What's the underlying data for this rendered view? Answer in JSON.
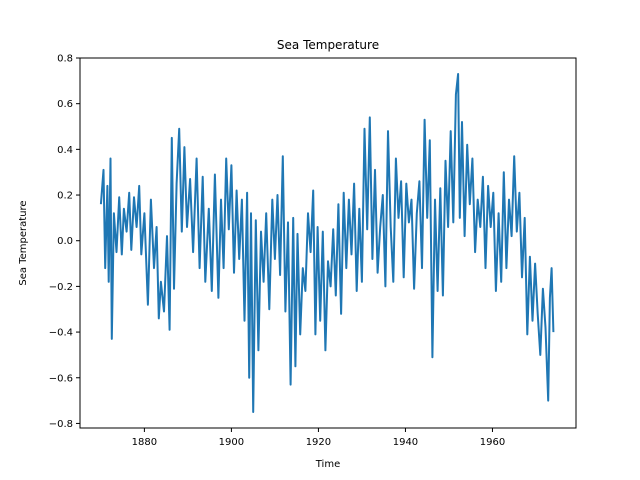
{
  "chart_data": {
    "type": "line",
    "title": "Sea Temperature",
    "xlabel": "Time",
    "ylabel": "Sea Temperature",
    "xlim": [
      1865.2,
      1979.2
    ],
    "ylim": [
      -0.82,
      0.8
    ],
    "x_ticks": [
      1880,
      1900,
      1920,
      1940,
      1960
    ],
    "y_ticks": [
      -0.8,
      -0.6,
      -0.4,
      -0.2,
      0.0,
      0.2,
      0.4,
      0.6,
      0.8
    ],
    "x_tick_labels": [
      "1880",
      "1900",
      "1920",
      "1940",
      "1960"
    ],
    "y_tick_labels": [
      "−0.8",
      "−0.6",
      "−0.4",
      "−0.2",
      "0.0",
      "0.2",
      "0.4",
      "0.6",
      "0.8"
    ],
    "grid": false,
    "series": [
      {
        "color": "#1f77b4",
        "x": [
          1870.0,
          1870.6,
          1871.0,
          1871.5,
          1871.8,
          1872.2,
          1872.5,
          1873.0,
          1873.6,
          1874.2,
          1874.8,
          1875.3,
          1875.9,
          1876.5,
          1877.0,
          1877.6,
          1878.2,
          1878.8,
          1879.3,
          1880.0,
          1880.8,
          1881.5,
          1882.2,
          1882.8,
          1883.3,
          1883.8,
          1884.5,
          1885.2,
          1885.8,
          1886.3,
          1886.8,
          1887.4,
          1888.0,
          1888.6,
          1889.2,
          1889.8,
          1890.5,
          1891.2,
          1892.0,
          1892.7,
          1893.4,
          1894.0,
          1894.8,
          1895.5,
          1896.2,
          1897.0,
          1897.6,
          1898.2,
          1898.8,
          1899.4,
          1900.0,
          1900.6,
          1901.2,
          1901.8,
          1902.4,
          1903.0,
          1903.6,
          1904.1,
          1904.5,
          1905.0,
          1905.6,
          1906.2,
          1906.8,
          1907.4,
          1908.0,
          1908.7,
          1909.4,
          1910.0,
          1910.6,
          1911.2,
          1911.8,
          1912.4,
          1913.0,
          1913.6,
          1914.2,
          1914.7,
          1915.2,
          1915.8,
          1916.4,
          1917.0,
          1917.6,
          1918.2,
          1918.8,
          1919.3,
          1919.8,
          1920.4,
          1921.0,
          1921.6,
          1922.2,
          1922.8,
          1923.4,
          1924.0,
          1924.6,
          1925.2,
          1925.8,
          1926.4,
          1927.0,
          1927.6,
          1928.2,
          1928.8,
          1929.4,
          1930.0,
          1930.6,
          1931.2,
          1931.8,
          1932.4,
          1933.0,
          1933.6,
          1934.2,
          1934.8,
          1935.4,
          1936.0,
          1936.6,
          1937.2,
          1937.8,
          1938.4,
          1939.0,
          1939.6,
          1940.2,
          1940.8,
          1941.4,
          1942.0,
          1942.6,
          1943.2,
          1943.8,
          1944.4,
          1945.0,
          1945.6,
          1946.2,
          1946.8,
          1947.4,
          1948.0,
          1948.6,
          1949.2,
          1949.8,
          1950.4,
          1951.0,
          1951.6,
          1952.1,
          1952.5,
          1953.0,
          1953.6,
          1954.2,
          1954.8,
          1955.4,
          1956.0,
          1956.6,
          1957.2,
          1957.8,
          1958.4,
          1959.0,
          1959.6,
          1960.2,
          1960.8,
          1961.4,
          1962.0,
          1962.6,
          1963.2,
          1963.8,
          1964.4,
          1965.0,
          1965.6,
          1966.2,
          1966.8,
          1967.4,
          1968.0,
          1968.6,
          1969.2,
          1969.8,
          1970.4,
          1971.0,
          1971.6,
          1972.2,
          1972.8,
          1973.2,
          1973.6,
          1974.0
        ],
        "y": [
          0.16,
          0.31,
          -0.12,
          0.24,
          -0.18,
          0.36,
          -0.43,
          0.12,
          -0.05,
          0.19,
          -0.06,
          0.14,
          0.04,
          0.21,
          -0.04,
          0.19,
          0.06,
          0.24,
          -0.06,
          0.12,
          -0.28,
          0.18,
          -0.12,
          0.06,
          -0.34,
          -0.18,
          -0.31,
          0.02,
          -0.39,
          0.45,
          -0.21,
          0.25,
          0.49,
          0.04,
          0.41,
          0.06,
          0.27,
          -0.05,
          0.36,
          -0.12,
          0.28,
          -0.18,
          0.14,
          -0.22,
          0.29,
          -0.25,
          0.18,
          -0.12,
          0.36,
          0.05,
          0.33,
          -0.14,
          0.22,
          -0.08,
          0.18,
          -0.35,
          0.21,
          -0.6,
          0.12,
          -0.75,
          0.09,
          -0.48,
          0.04,
          -0.18,
          0.12,
          -0.3,
          0.18,
          -0.08,
          0.2,
          -0.15,
          0.37,
          -0.31,
          0.08,
          -0.63,
          0.1,
          -0.55,
          0.03,
          -0.41,
          -0.12,
          -0.22,
          0.12,
          -0.05,
          0.22,
          -0.41,
          0.06,
          -0.35,
          0.04,
          -0.48,
          -0.09,
          -0.2,
          0.05,
          -0.24,
          0.16,
          -0.32,
          0.21,
          -0.12,
          0.18,
          -0.06,
          0.25,
          -0.22,
          0.14,
          -0.18,
          0.49,
          0.05,
          0.54,
          -0.08,
          0.31,
          -0.14,
          0.06,
          0.2,
          -0.2,
          0.48,
          0.06,
          -0.18,
          0.36,
          0.1,
          0.26,
          -0.16,
          0.25,
          0.08,
          0.18,
          -0.21,
          0.12,
          0.26,
          -0.12,
          0.53,
          0.1,
          0.44,
          -0.51,
          0.18,
          -0.22,
          0.23,
          -0.24,
          0.35,
          0.06,
          0.48,
          0.08,
          0.64,
          0.73,
          0.1,
          0.52,
          0.02,
          0.42,
          0.16,
          0.36,
          -0.05,
          0.18,
          0.06,
          0.28,
          -0.12,
          0.24,
          0.06,
          0.21,
          -0.22,
          0.12,
          -0.18,
          0.3,
          -0.12,
          0.18,
          0.02,
          0.37,
          0.04,
          0.21,
          -0.16,
          0.1,
          -0.41,
          -0.07,
          -0.35,
          -0.1,
          -0.32,
          -0.5,
          -0.21,
          -0.38,
          -0.7,
          -0.25,
          -0.12,
          -0.4
        ]
      }
    ]
  }
}
